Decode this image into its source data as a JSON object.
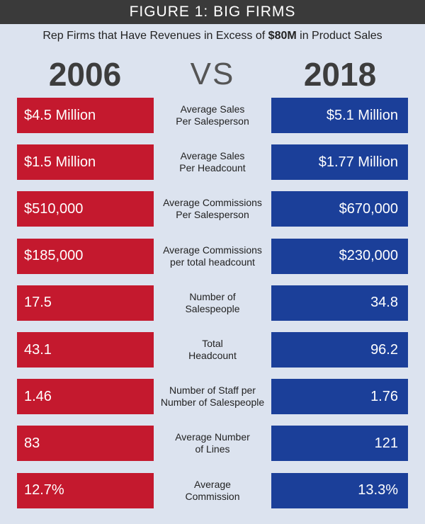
{
  "header": {
    "title": "FIGURE 1: BIG FIRMS"
  },
  "subtitle": {
    "prefix": "Rep Firms that Have Revenues in Excess of",
    "highlight": "$80M",
    "suffix": "in Product Sales"
  },
  "years": {
    "left": "2006",
    "vs": "VS",
    "right": "2018"
  },
  "colors": {
    "red": "#c4192e",
    "blue": "#1b3f99",
    "header": "#3a3a3a",
    "background": "#dce3ef"
  },
  "rows": [
    {
      "left": "$4.5 Million",
      "label1": "Average Sales",
      "label2": "Per Salesperson",
      "right": "$5.1 Million"
    },
    {
      "left": "$1.5 Million",
      "label1": "Average Sales",
      "label2": "Per Headcount",
      "right": "$1.77 Million"
    },
    {
      "left": "$510,000",
      "label1": "Average Commissions",
      "label2": "Per Salesperson",
      "right": "$670,000"
    },
    {
      "left": "$185,000",
      "label1": "Average Commissions",
      "label2": "per total headcount",
      "right": "$230,000"
    },
    {
      "left": "17.5",
      "label1": "Number of",
      "label2": "Salespeople",
      "right": "34.8"
    },
    {
      "left": "43.1",
      "label1": "Total",
      "label2": "Headcount",
      "right": "96.2"
    },
    {
      "left": "1.46",
      "label1": "Number of Staff per",
      "label2": "Number of Salespeople",
      "right": "1.76"
    },
    {
      "left": "83",
      "label1": "Average Number",
      "label2": "of Lines",
      "right": "121"
    },
    {
      "left": "12.7%",
      "label1": "Average",
      "label2": "Commission",
      "right": "13.3%"
    }
  ]
}
